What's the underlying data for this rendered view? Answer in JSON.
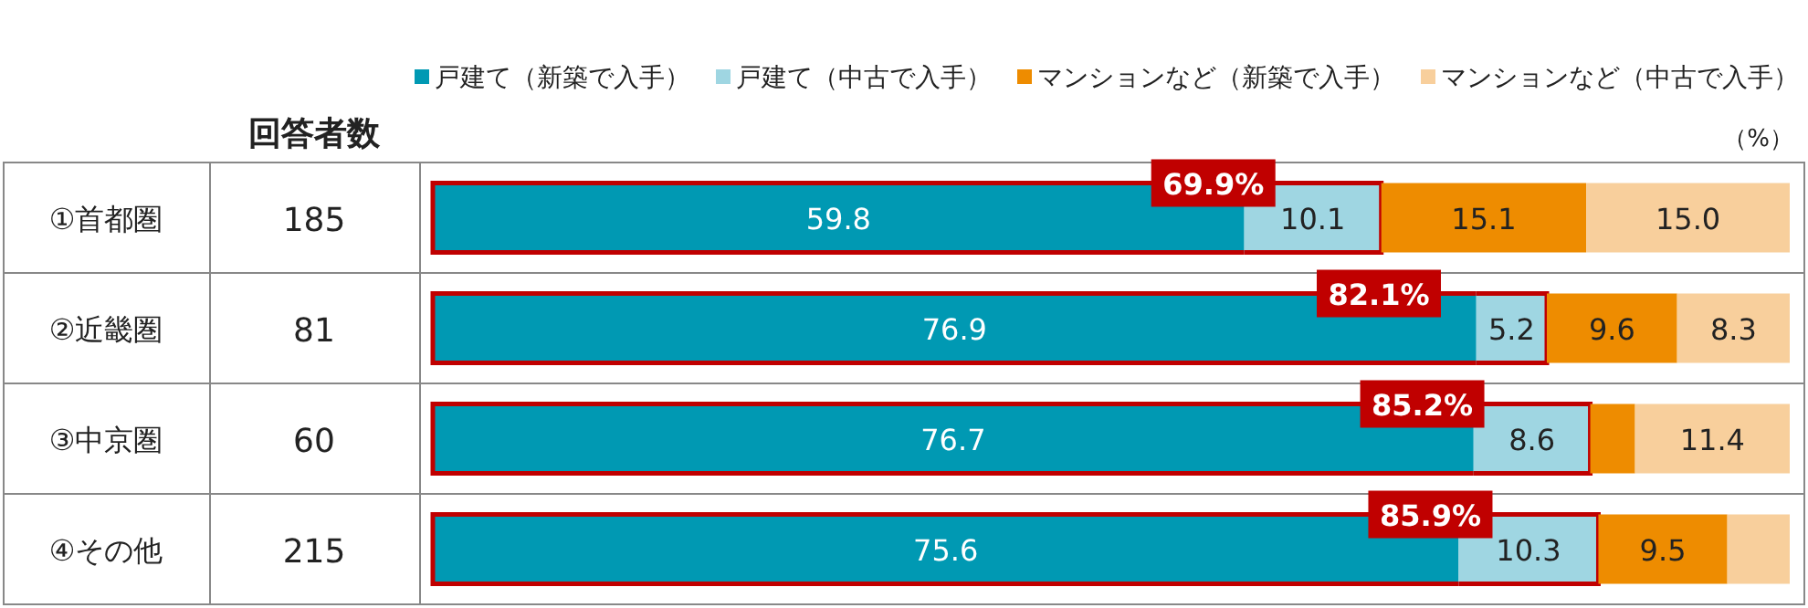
{
  "chart_data": {
    "type": "bar",
    "orientation": "horizontal",
    "stacked": true,
    "legend": "top right",
    "tick_labels": "y",
    "xlim": [
      0,
      100
    ],
    "categories": [
      "①首都圏",
      "②近畿圏",
      "③中京圏",
      "④その他"
    ],
    "series": [
      {
        "name": "戸建て（新築で入手）",
        "color": "#0099b3",
        "values": [
          59.8,
          76.9,
          76.7,
          75.6
        ],
        "value_labels": [
          "59.8",
          "76.9",
          "76.7",
          "75.6"
        ]
      },
      {
        "name": "戸建て（中古で入手）",
        "color": "#9fd6e2",
        "values": [
          10.1,
          5.2,
          8.6,
          10.3
        ],
        "value_labels": [
          "10.1",
          "5.2",
          "8.6",
          "10.3"
        ]
      },
      {
        "name": "マンションなど（新築で入手）",
        "color": "#ee8c00",
        "values": [
          15.1,
          9.6,
          3.3,
          9.5
        ],
        "value_labels": [
          "15.1",
          "9.6",
          null,
          "9.5"
        ]
      },
      {
        "name": "マンションなど（中古で入手）",
        "color": "#f8cf9c",
        "values": [
          15.0,
          8.3,
          11.4,
          4.6
        ],
        "value_labels": [
          "15.0",
          "8.3",
          "11.4",
          null
        ]
      }
    ],
    "annotations": [
      "回答者数",
      "（%）",
      "185",
      "81",
      "60",
      "215",
      "69.9%",
      "82.1%",
      "85.2%",
      "85.9%"
    ]
  }
}
